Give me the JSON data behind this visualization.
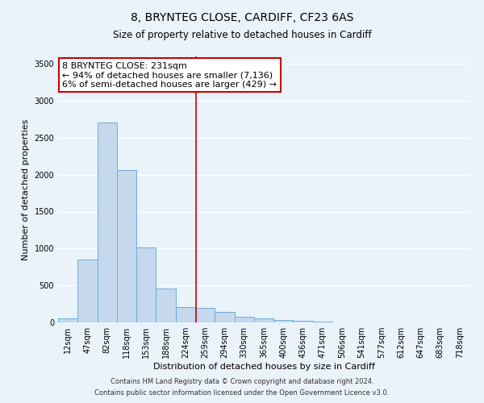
{
  "title": "8, BRYNTEG CLOSE, CARDIFF, CF23 6AS",
  "subtitle": "Size of property relative to detached houses in Cardiff",
  "xlabel": "Distribution of detached houses by size in Cardiff",
  "ylabel": "Number of detached properties",
  "bar_labels": [
    "12sqm",
    "47sqm",
    "82sqm",
    "118sqm",
    "153sqm",
    "188sqm",
    "224sqm",
    "259sqm",
    "294sqm",
    "330sqm",
    "365sqm",
    "400sqm",
    "436sqm",
    "471sqm",
    "506sqm",
    "541sqm",
    "577sqm",
    "612sqm",
    "647sqm",
    "683sqm",
    "718sqm"
  ],
  "bar_values": [
    50,
    855,
    2710,
    2065,
    1010,
    460,
    205,
    195,
    145,
    80,
    55,
    30,
    25,
    15,
    5,
    0,
    0,
    0,
    0,
    0,
    0
  ],
  "bar_color": "#c5d8ed",
  "bar_edge_color": "#6baed6",
  "vline_x": 6.55,
  "vline_color": "#cc0000",
  "annotation_title": "8 BRYNTEG CLOSE: 231sqm",
  "annotation_line1": "← 94% of detached houses are smaller (7,136)",
  "annotation_line2": "6% of semi-detached houses are larger (429) →",
  "annotation_box_color": "#ffffff",
  "annotation_box_edge": "#cc0000",
  "ylim": [
    0,
    3600
  ],
  "yticks": [
    0,
    500,
    1000,
    1500,
    2000,
    2500,
    3000,
    3500
  ],
  "footer1": "Contains HM Land Registry data © Crown copyright and database right 2024.",
  "footer2": "Contains public sector information licensed under the Open Government Licence v3.0.",
  "bg_color": "#eaf2fa",
  "plot_bg_color": "#eaf2fa",
  "grid_color": "#ffffff",
  "title_fontsize": 10,
  "subtitle_fontsize": 8.5,
  "tick_fontsize": 7,
  "ylabel_fontsize": 8,
  "xlabel_fontsize": 8,
  "annotation_fontsize": 8
}
